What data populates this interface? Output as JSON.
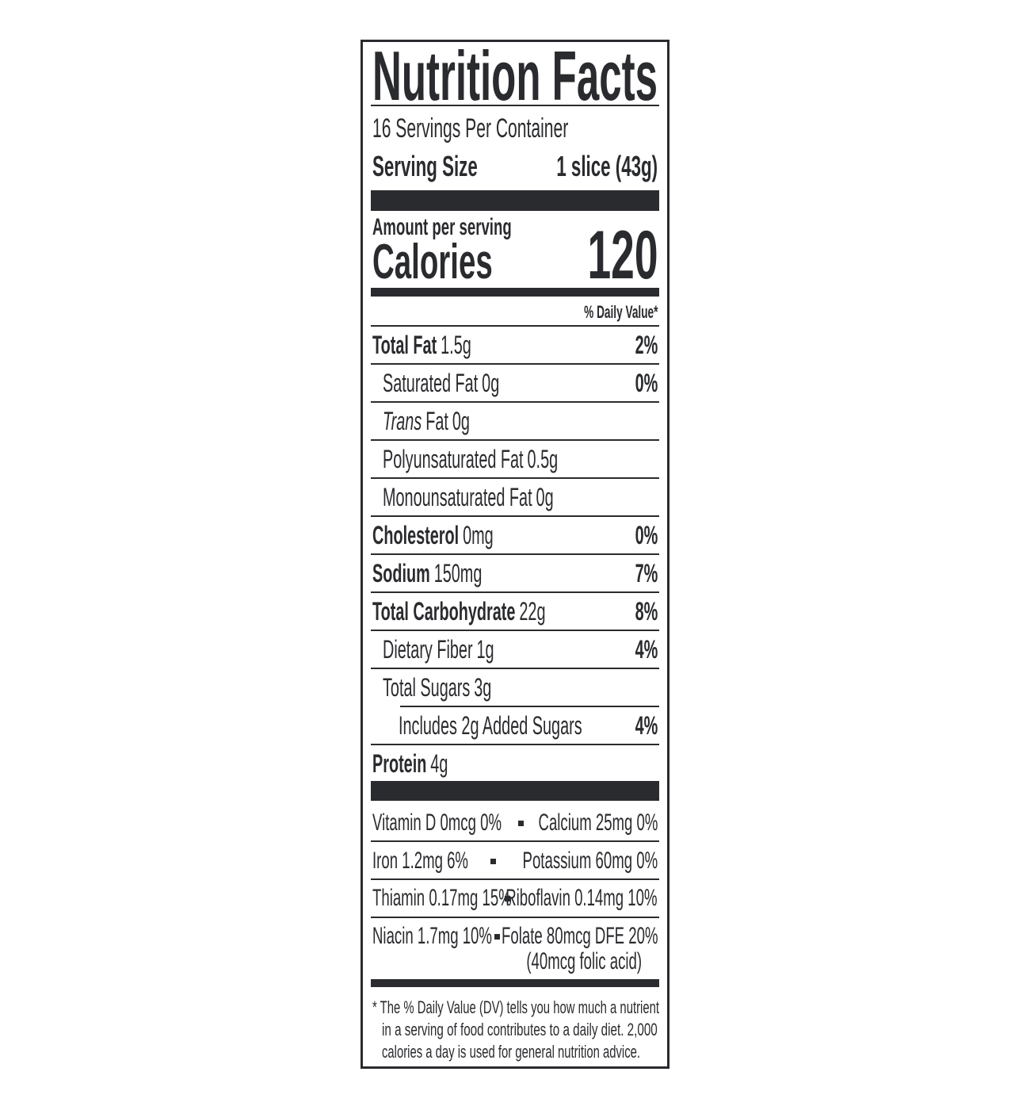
{
  "title": "Nutrition Facts",
  "servings": "16 Servings Per Container",
  "serving_size": {
    "label": "Serving Size",
    "value": "1 slice (43g)"
  },
  "amount_per_serving": "Amount per serving",
  "calories": {
    "label": "Calories",
    "value": "120"
  },
  "daily_value_header": "% Daily Value*",
  "nutrients": [
    {
      "name": "Total Fat",
      "amount": "1.5g",
      "dv": "2%",
      "sub": [
        {
          "name": "Saturated Fat",
          "amount": "0g",
          "dv": "0%"
        },
        {
          "name_italic": "Trans",
          "name": "Fat",
          "amount": "0g"
        },
        {
          "name": "Polyunsaturated Fat",
          "amount": "0.5g"
        },
        {
          "name": "Monounsaturated Fat",
          "amount": "0g"
        }
      ]
    },
    {
      "name": "Cholesterol",
      "amount": "0mg",
      "dv": "0%"
    },
    {
      "name": "Sodium",
      "amount": "150mg",
      "dv": "7%"
    },
    {
      "name": "Total Carbohydrate",
      "amount": "22g",
      "dv": "8%",
      "sub": [
        {
          "name": "Dietary Fiber",
          "amount": "1g",
          "dv": "4%"
        },
        {
          "name": "Total Sugars",
          "amount": "3g",
          "sub": [
            {
              "name": "Includes 2g Added Sugars",
              "dv": "4%"
            }
          ]
        }
      ]
    },
    {
      "name": "Protein",
      "amount": "4g"
    }
  ],
  "vitamins": [
    {
      "left": "Vitamin D 0mcg 0%",
      "right": "Calcium 25mg 0%"
    },
    {
      "left": "Iron 1.2mg 6%",
      "right": "Potassium 60mg 0%"
    },
    {
      "left": "Thiamin 0.17mg 15%",
      "right": "Riboflavin 0.14mg 10%"
    },
    {
      "left": "Niacin 1.7mg 10%",
      "right": "Folate 80mcg DFE 20%",
      "right_note": "(40mcg folic acid)"
    }
  ],
  "footnote": [
    "* The % Daily Value (DV) tells you how much a nutrient",
    "in a serving of food contributes to a daily diet. 2,000",
    "calories a day is used for general nutrition advice."
  ]
}
